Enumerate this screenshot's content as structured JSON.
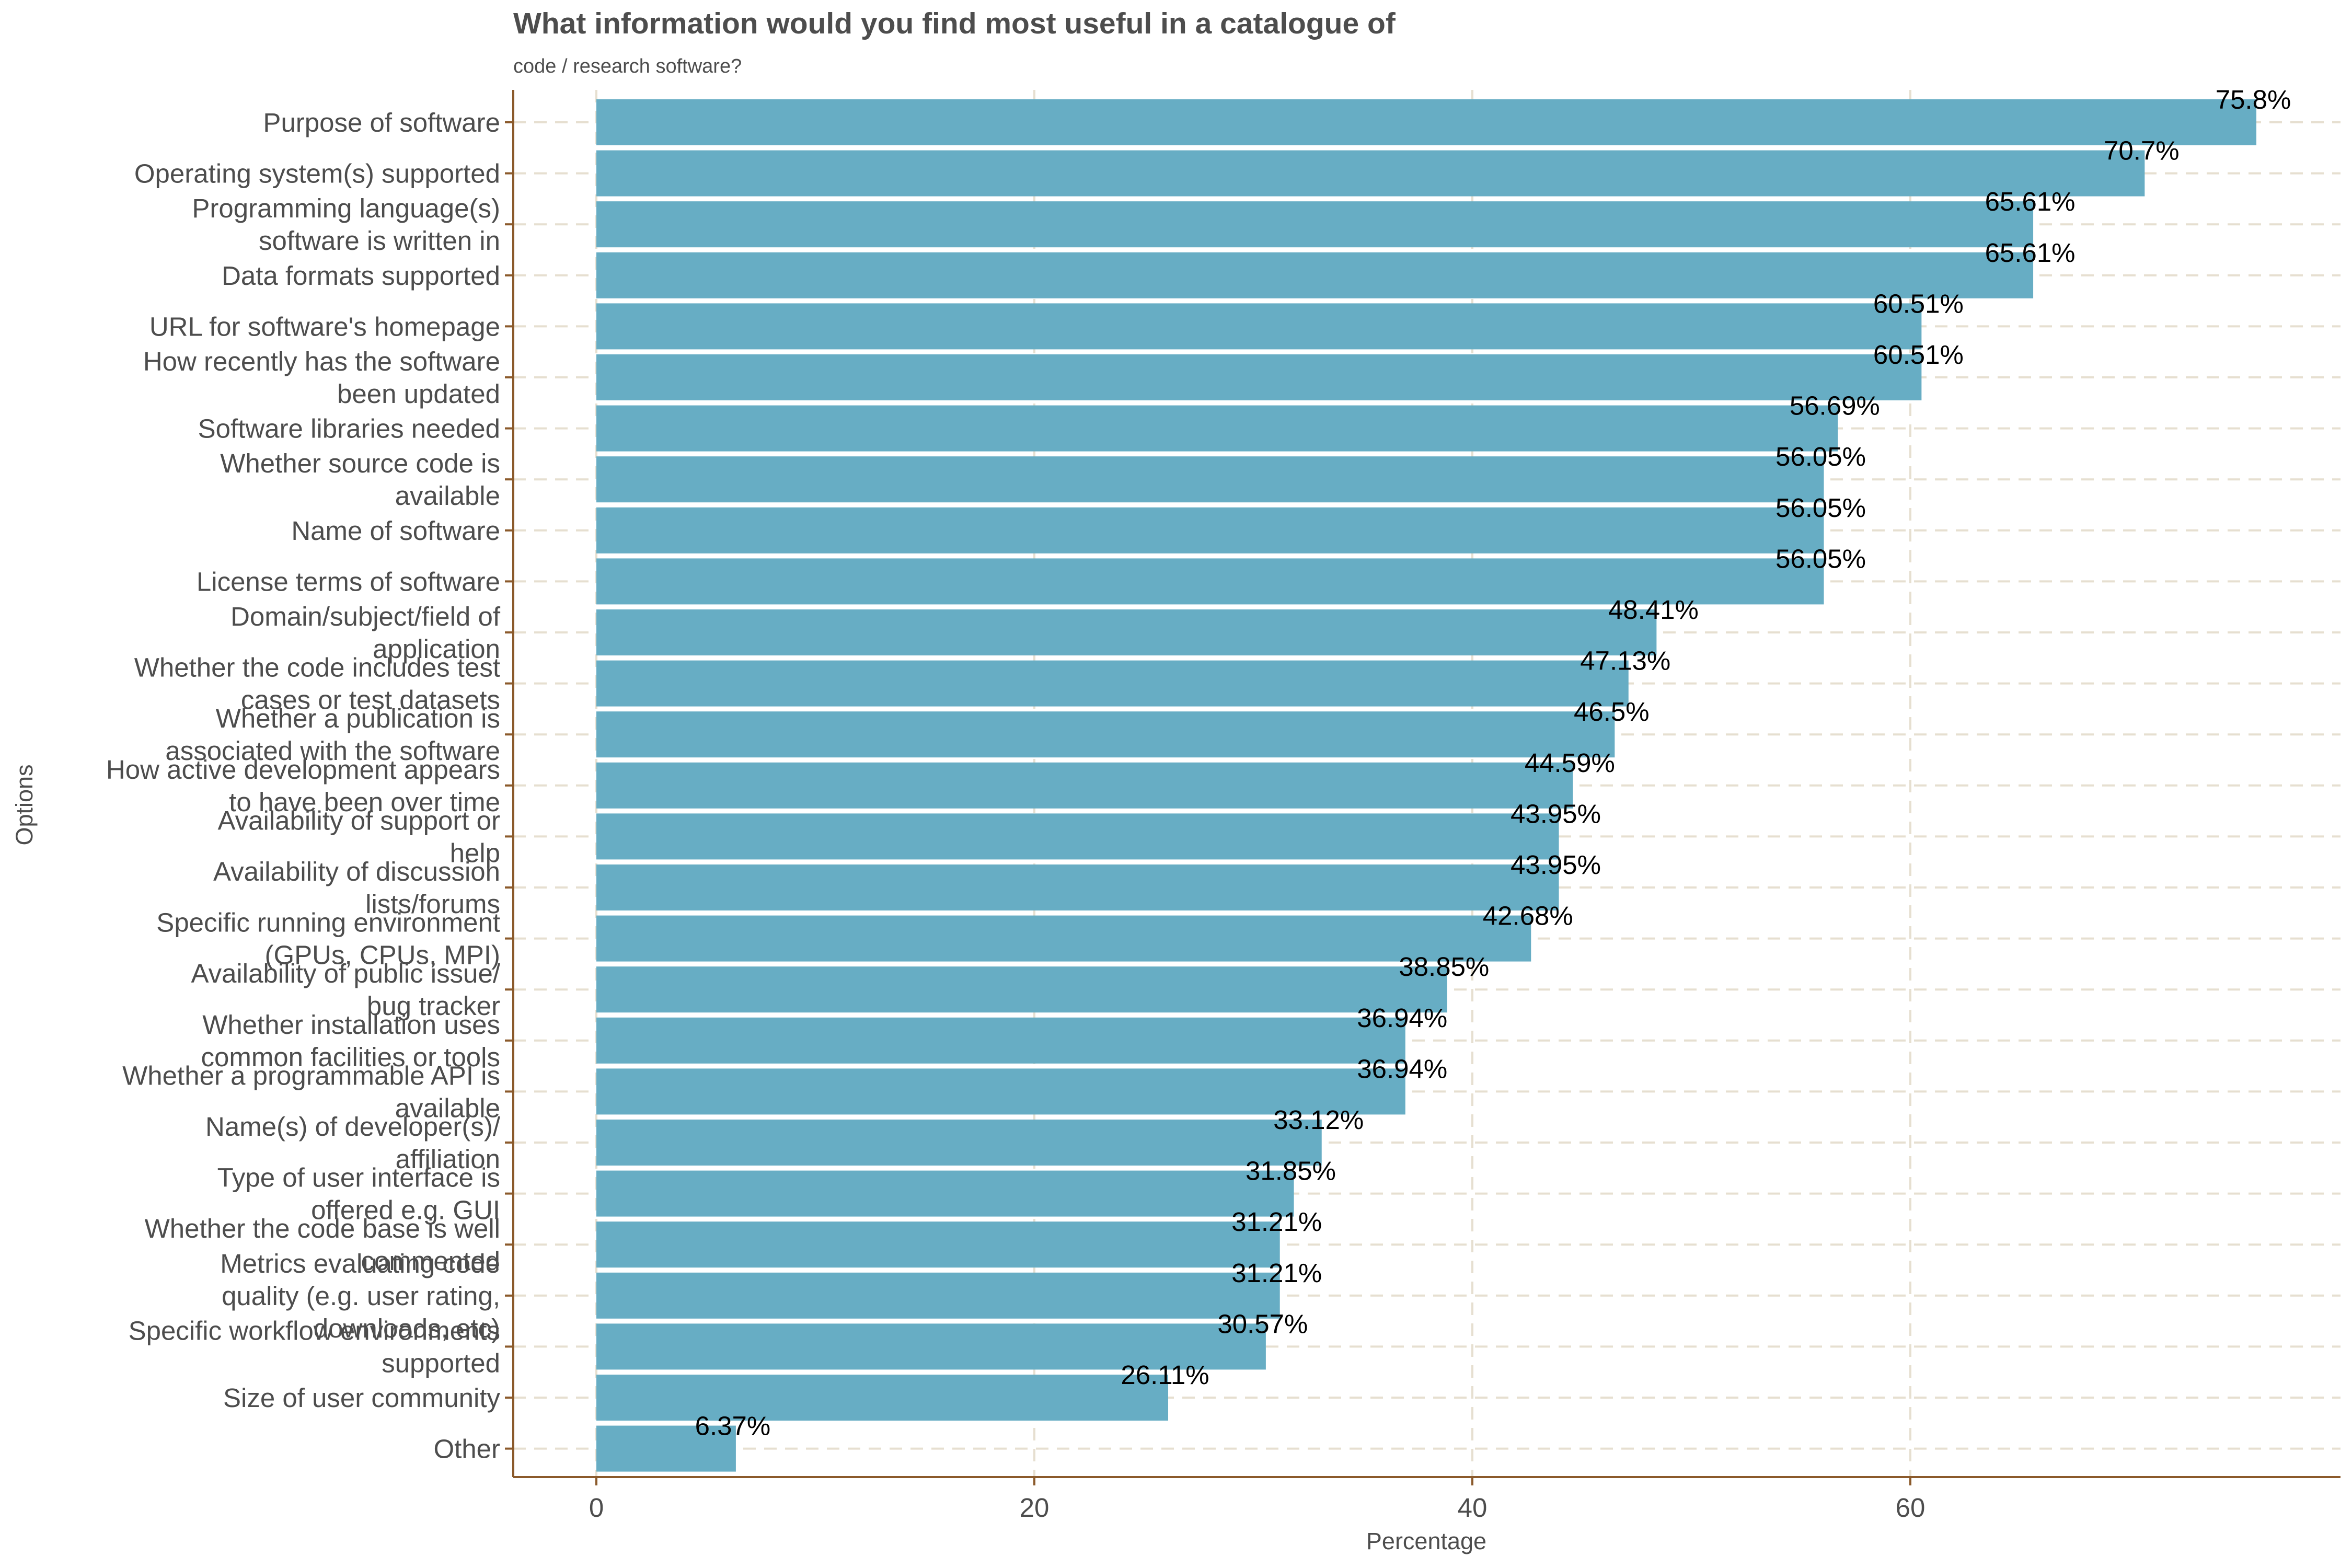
{
  "colors": {
    "bar": "#67adc4",
    "axis": "#8b5a2b",
    "grid": "#e6dfd0",
    "text": "#4d4d4d"
  },
  "chart_data": {
    "type": "bar",
    "orientation": "horizontal",
    "title": "What information would you find most useful in a catalogue of",
    "subtitle": "code / research software?",
    "xlabel": "Percentage",
    "ylabel": "Options",
    "xlim": [
      0,
      80
    ],
    "xticks": [
      "0",
      "20",
      "40",
      "60"
    ],
    "grid": true,
    "categories": [
      [
        "Purpose of software"
      ],
      [
        "Operating system(s) supported"
      ],
      [
        "Programming language(s)",
        "software is written in"
      ],
      [
        "Data formats supported"
      ],
      [
        "URL for software's homepage"
      ],
      [
        "How recently has the software",
        "been updated"
      ],
      [
        "Software libraries needed"
      ],
      [
        "Whether source code is",
        "available"
      ],
      [
        "Name of software"
      ],
      [
        "License terms of software"
      ],
      [
        "Domain/subject/field of",
        "application"
      ],
      [
        "Whether the code includes test",
        "cases or test datasets"
      ],
      [
        "Whether a publication is",
        "associated with the software"
      ],
      [
        "How active development appears",
        "to have been over time"
      ],
      [
        "Availability of support or",
        "help"
      ],
      [
        "Availability of discussion",
        "lists/forums"
      ],
      [
        "Specific running environment",
        "(GPUs, CPUs, MPI)"
      ],
      [
        "Availability of public issue/",
        "bug tracker"
      ],
      [
        "Whether installation uses",
        "common facilities or tools"
      ],
      [
        "Whether a programmable API is",
        "available"
      ],
      [
        "Name(s) of developer(s)/",
        "affiliation"
      ],
      [
        "Type of user interface is",
        "offered e.g. GUI"
      ],
      [
        "Whether the code base is well",
        "commented"
      ],
      [
        "Metrics evaluating code",
        "quality (e.g. user rating,",
        "downloads, etc)"
      ],
      [
        "Specific workflow environments",
        "supported"
      ],
      [
        "Size of user community"
      ],
      [
        "Other"
      ]
    ],
    "values": [
      75.8,
      70.7,
      65.61,
      65.61,
      60.51,
      60.51,
      56.69,
      56.05,
      56.05,
      56.05,
      48.41,
      47.13,
      46.5,
      44.59,
      43.95,
      43.95,
      42.68,
      38.85,
      36.94,
      36.94,
      33.12,
      31.85,
      31.21,
      31.21,
      30.57,
      26.11,
      6.37
    ],
    "value_labels": [
      "75.8%",
      "70.7%",
      "65.61%",
      "65.61%",
      "60.51%",
      "60.51%",
      "56.69%",
      "56.05%",
      "56.05%",
      "56.05%",
      "48.41%",
      "47.13%",
      "46.5%",
      "44.59%",
      "43.95%",
      "43.95%",
      "42.68%",
      "38.85%",
      "36.94%",
      "36.94%",
      "33.12%",
      "31.85%",
      "31.21%",
      "31.21%",
      "30.57%",
      "26.11%",
      "6.37%"
    ]
  }
}
